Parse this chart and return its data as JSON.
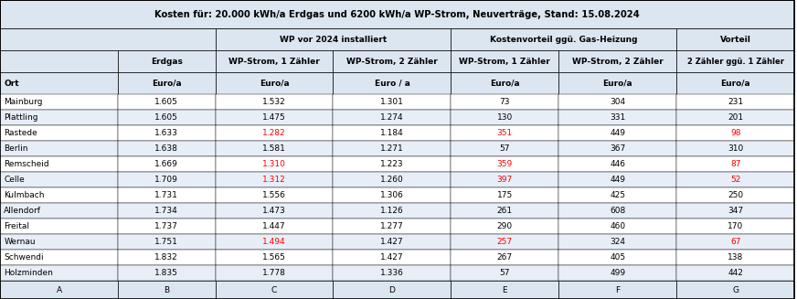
{
  "title": "Kosten für: 20.000 kWh/a Erdgas und 6200 kWh/a WP-Strom, Neuverträge, Stand: 15.08.2024",
  "col_headers_row1": [
    "",
    "WP vor 2024 installiert",
    "",
    "Kostenvorteil ggü. Gas-Heizung",
    "",
    "Vorteil"
  ],
  "col_headers_row2": [
    "Erdgas",
    "WP-Strom, 1 Zähler",
    "WP-Strom, 2 Zähler",
    "WP-Strom, 1 Zähler",
    "WP-Strom, 2 Zähler",
    "2 Zähler ggü. 1 Zähler"
  ],
  "col_headers_row3": [
    "Euro/a",
    "Euro/a",
    "Euro / a",
    "Euro/a",
    "Euro/a",
    "Euro/a"
  ],
  "row_label_header": "Ort",
  "footer_labels": [
    "A",
    "B",
    "C",
    "D",
    "E",
    "F",
    "G"
  ],
  "rows": [
    {
      "ort": "Mainburg",
      "B": "1.605",
      "C": "1.532",
      "D": "1.301",
      "E": "73",
      "F": "304",
      "G": "231",
      "C_red": false,
      "E_red": false,
      "G_red": false
    },
    {
      "ort": "Plattling",
      "B": "1.605",
      "C": "1.475",
      "D": "1.274",
      "E": "130",
      "F": "331",
      "G": "201",
      "C_red": false,
      "E_red": false,
      "G_red": false
    },
    {
      "ort": "Rastede",
      "B": "1.633",
      "C": "1.282",
      "D": "1.184",
      "E": "351",
      "F": "449",
      "G": "98",
      "C_red": true,
      "E_red": true,
      "G_red": true
    },
    {
      "ort": "Berlin",
      "B": "1.638",
      "C": "1.581",
      "D": "1.271",
      "E": "57",
      "F": "367",
      "G": "310",
      "C_red": false,
      "E_red": false,
      "G_red": false
    },
    {
      "ort": "Remscheid",
      "B": "1.669",
      "C": "1.310",
      "D": "1.223",
      "E": "359",
      "F": "446",
      "G": "87",
      "C_red": true,
      "E_red": true,
      "G_red": true
    },
    {
      "ort": "Celle",
      "B": "1.709",
      "C": "1.312",
      "D": "1.260",
      "E": "397",
      "F": "449",
      "G": "52",
      "C_red": true,
      "E_red": true,
      "G_red": true
    },
    {
      "ort": "Kulmbach",
      "B": "1.731",
      "C": "1.556",
      "D": "1.306",
      "E": "175",
      "F": "425",
      "G": "250",
      "C_red": false,
      "E_red": false,
      "G_red": false
    },
    {
      "ort": "Allendorf",
      "B": "1.734",
      "C": "1.473",
      "D": "1.126",
      "E": "261",
      "F": "608",
      "G": "347",
      "C_red": false,
      "E_red": false,
      "G_red": false
    },
    {
      "ort": "Freital",
      "B": "1.737",
      "C": "1.447",
      "D": "1.277",
      "E": "290",
      "F": "460",
      "G": "170",
      "C_red": false,
      "E_red": false,
      "G_red": false
    },
    {
      "ort": "Wernau",
      "B": "1.751",
      "C": "1.494",
      "D": "1.427",
      "E": "257",
      "F": "324",
      "G": "67",
      "C_red": true,
      "E_red": true,
      "G_red": true
    },
    {
      "ort": "Schwendi",
      "B": "1.832",
      "C": "1.565",
      "D": "1.427",
      "E": "267",
      "F": "405",
      "G": "138",
      "C_red": false,
      "E_red": false,
      "G_red": false
    },
    {
      "ort": "Holzminden",
      "B": "1.835",
      "C": "1.778",
      "D": "1.336",
      "E": "57",
      "F": "499",
      "G": "442",
      "C_red": false,
      "E_red": false,
      "G_red": false
    }
  ],
  "bg_title": "#dce6f1",
  "bg_header": "#dce6f1",
  "bg_row_even": "#ffffff",
  "bg_row_odd": "#e8eef7",
  "bg_footer": "#dce6f1",
  "color_red": "#ff0000",
  "color_black": "#000000",
  "border_color": "#000000",
  "col_span_C_D": [
    1,
    2
  ],
  "col_span_E_F": [
    3,
    4
  ]
}
